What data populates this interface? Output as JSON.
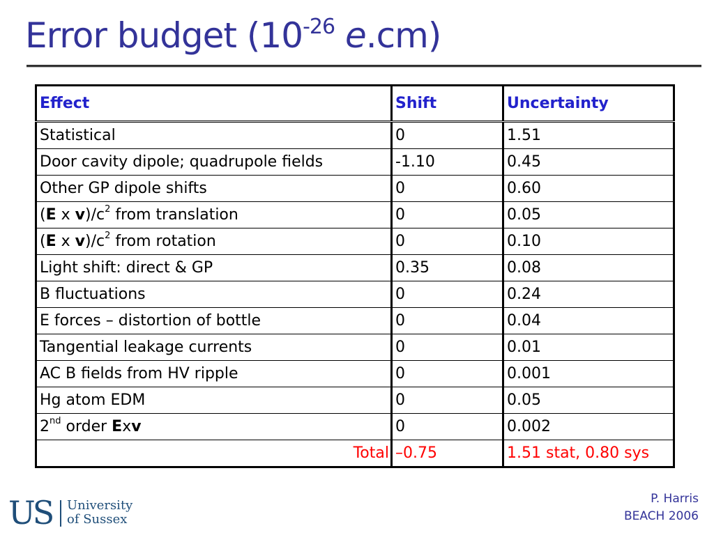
{
  "title": {
    "prefix": "Error budget (10",
    "exponent": "-26",
    "unit_italic": "e",
    "unit_rest": ".cm)"
  },
  "table": {
    "headers": [
      "Effect",
      "Shift",
      "Uncertainty"
    ],
    "rows": [
      {
        "effect": "Statistical",
        "shift": "0",
        "uncertainty": "1.51"
      },
      {
        "effect": "Door cavity dipole; quadrupole fields",
        "shift": "-1.10",
        "uncertainty": "0.45"
      },
      {
        "effect": "Other GP dipole shifts",
        "shift": "0",
        "uncertainty": "0.60"
      },
      {
        "effect_parts": [
          "(",
          "E",
          " x ",
          "v",
          ")/c",
          "2",
          " from translation"
        ],
        "shift": "0",
        "uncertainty": "0.05"
      },
      {
        "effect_parts": [
          "(",
          "E",
          " x ",
          "v",
          ")/c",
          "2",
          " from rotation"
        ],
        "shift": "0",
        "uncertainty": "0.10"
      },
      {
        "effect": "Light shift: direct & GP",
        "shift": "0.35",
        "uncertainty": "0.08"
      },
      {
        "effect": "B fluctuations",
        "shift": "0",
        "uncertainty": "0.24"
      },
      {
        "effect": "E forces – distortion of bottle",
        "shift": "0",
        "uncertainty": "0.04"
      },
      {
        "effect": "Tangential leakage currents",
        "shift": "0",
        "uncertainty": "0.01"
      },
      {
        "effect": "AC B fields from HV ripple",
        "shift": "0",
        "uncertainty": "0.001"
      },
      {
        "effect": "Hg atom EDM",
        "shift": "0",
        "uncertainty": "0.05"
      },
      {
        "effect_parts": [
          "2",
          "nd",
          " order ",
          "E",
          "x",
          "v"
        ],
        "shift": "0",
        "uncertainty": "0.002"
      }
    ],
    "total": {
      "label": "Total",
      "shift": "–0.75",
      "uncertainty": "1.51 stat, 0.80 sys"
    }
  },
  "logo": {
    "mark": "US",
    "line1": "University",
    "line2": "of Sussex"
  },
  "footer": {
    "author": "P. Harris",
    "event": "BEACH 2006"
  },
  "colors": {
    "title": "#333399",
    "header_text": "#2222cc",
    "total_text": "#ff0000",
    "logo": "#1f4e79"
  }
}
